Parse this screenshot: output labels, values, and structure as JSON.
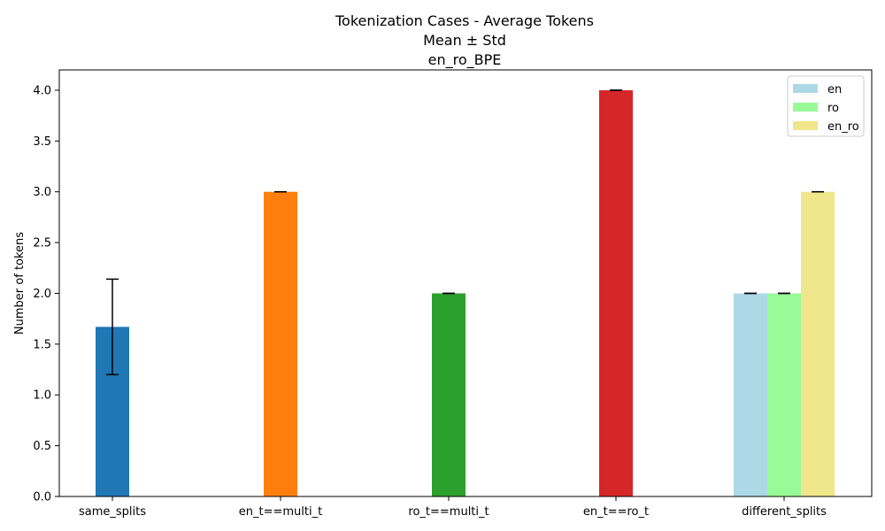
{
  "chart_data": {
    "type": "bar",
    "title_lines": [
      "Tokenization Cases - Average Tokens",
      "Mean ± Std",
      "en_ro_BPE"
    ],
    "xlabel": "",
    "ylabel": "Number of tokens",
    "ylim": [
      0,
      4.2
    ],
    "yticks": [
      "0.0",
      "0.5",
      "1.0",
      "1.5",
      "2.0",
      "2.5",
      "3.0",
      "3.5",
      "4.0"
    ],
    "grid": false,
    "legend_position": "top-right",
    "categories": [
      "same_splits",
      "en_t==multi_t",
      "ro_t==multi_t",
      "en_t==ro_t",
      "different_splits"
    ],
    "bars": [
      {
        "category": "same_splits",
        "value": 1.67,
        "std": 0.47,
        "color": "#1f77b4"
      },
      {
        "category": "en_t==multi_t",
        "value": 3.0,
        "std": 0.0,
        "color": "#ff7f0e"
      },
      {
        "category": "ro_t==multi_t",
        "value": 2.0,
        "std": 0.0,
        "color": "#2ca02c"
      },
      {
        "category": "en_t==ro_t",
        "value": 4.0,
        "std": 0.0,
        "color": "#d62728"
      }
    ],
    "grouped": {
      "category": "different_splits",
      "series": [
        {
          "name": "en",
          "value": 2.0,
          "std": 0.0,
          "color": "#add8e6"
        },
        {
          "name": "ro",
          "value": 2.0,
          "std": 0.0,
          "color": "#98fb98"
        },
        {
          "name": "en_ro",
          "value": 3.0,
          "std": 0.0,
          "color": "#f0e68c"
        }
      ]
    }
  }
}
